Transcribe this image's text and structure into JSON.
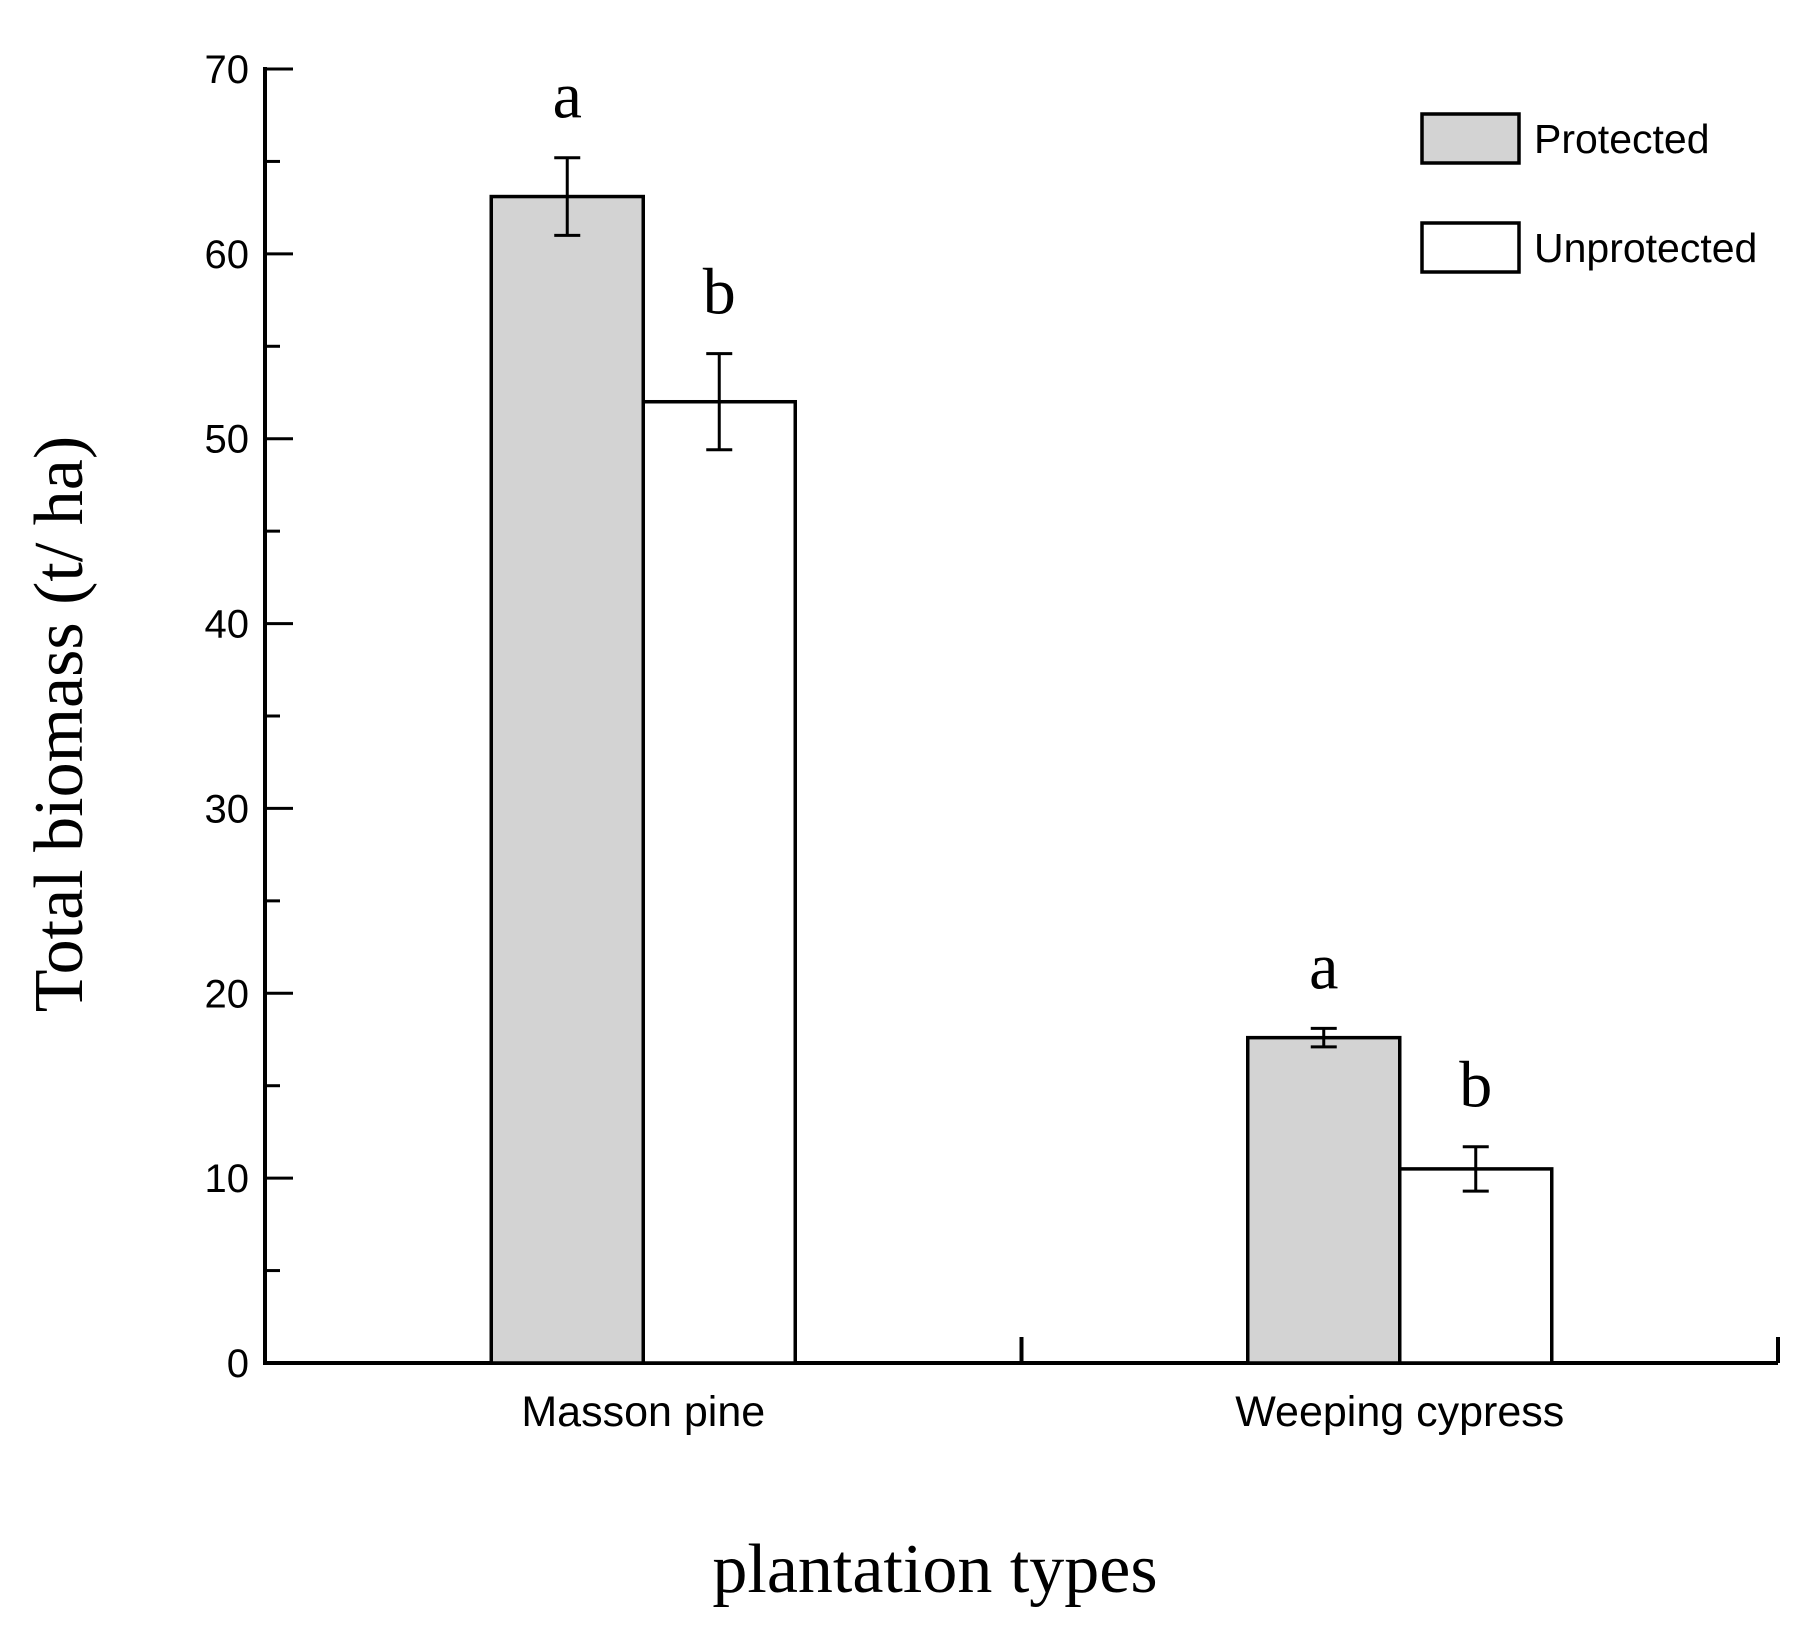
{
  "chart_data": {
    "type": "bar",
    "title": "",
    "xlabel": "plantation types",
    "ylabel": "Total biomass (t/ ha)",
    "ylim": [
      0,
      70
    ],
    "yticks_major": [
      0,
      10,
      20,
      30,
      40,
      50,
      60,
      70
    ],
    "yticks_minor": [
      5,
      15,
      25,
      35,
      45,
      55,
      65
    ],
    "categories": [
      "Masson pine",
      "Weeping cypress"
    ],
    "series": [
      {
        "name": "Protected",
        "color": "#d3d3d3",
        "values": [
          63.1,
          17.6
        ],
        "errors": [
          2.1,
          0.5
        ],
        "letters": [
          "a",
          "a"
        ]
      },
      {
        "name": "Unprotected",
        "color": "#ffffff",
        "values": [
          52.0,
          10.5
        ],
        "errors": [
          2.6,
          1.2
        ],
        "letters": [
          "b",
          "b"
        ]
      }
    ],
    "legend_position": "top-right",
    "grid": false
  }
}
